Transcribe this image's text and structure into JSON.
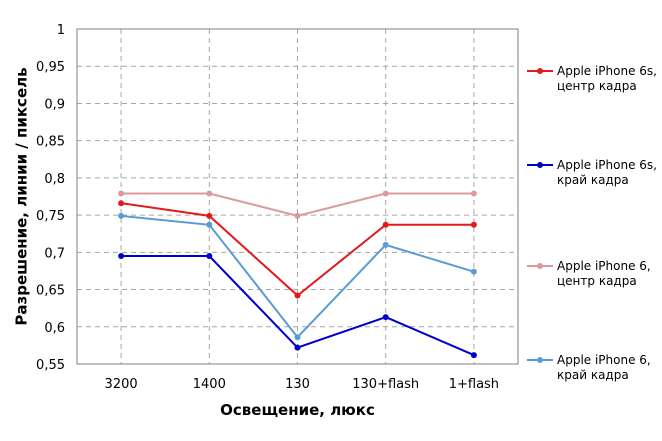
{
  "chart_data": {
    "type": "line",
    "title": "",
    "xlabel": "Освещение,  люкс",
    "ylabel": "Разрешение,  линии  / пиксель",
    "categories": [
      "3200",
      "1400",
      "130",
      "130+flash",
      "1+flash"
    ],
    "yticks": [
      "0,55",
      "0,6",
      "0,65",
      "0,7",
      "0,75",
      "0,8",
      "0,85",
      "0,9",
      "0,95",
      "1"
    ],
    "ylim": [
      0.55,
      1.0
    ],
    "grid": true,
    "legend_position": "right",
    "series": [
      {
        "name": "Apple iPhone 6s, центр кадра",
        "legend_lines": [
          "Apple iPhone 6s,",
          "центр кадра"
        ],
        "color": "#e31a1c",
        "values": [
          0.766,
          0.749,
          0.642,
          0.737,
          0.737
        ]
      },
      {
        "name": "Apple iPhone 6s, край кадра",
        "legend_lines": [
          "Apple iPhone 6s,",
          "край кадра"
        ],
        "color": "#0000cc",
        "values": [
          0.695,
          0.695,
          0.572,
          0.613,
          0.562
        ]
      },
      {
        "name": "Apple iPhone 6, центр кадра",
        "legend_lines": [
          "Apple iPhone 6,",
          "центр кадра"
        ],
        "color": "#dc9a9a",
        "values": [
          0.779,
          0.779,
          0.749,
          0.779,
          0.779
        ]
      },
      {
        "name": "Apple iPhone 6, край кадра",
        "legend_lines": [
          "Apple iPhone 6,",
          "край кадра"
        ],
        "color": "#5b9bd5",
        "values": [
          0.749,
          0.737,
          0.586,
          0.71,
          0.674
        ]
      }
    ]
  }
}
